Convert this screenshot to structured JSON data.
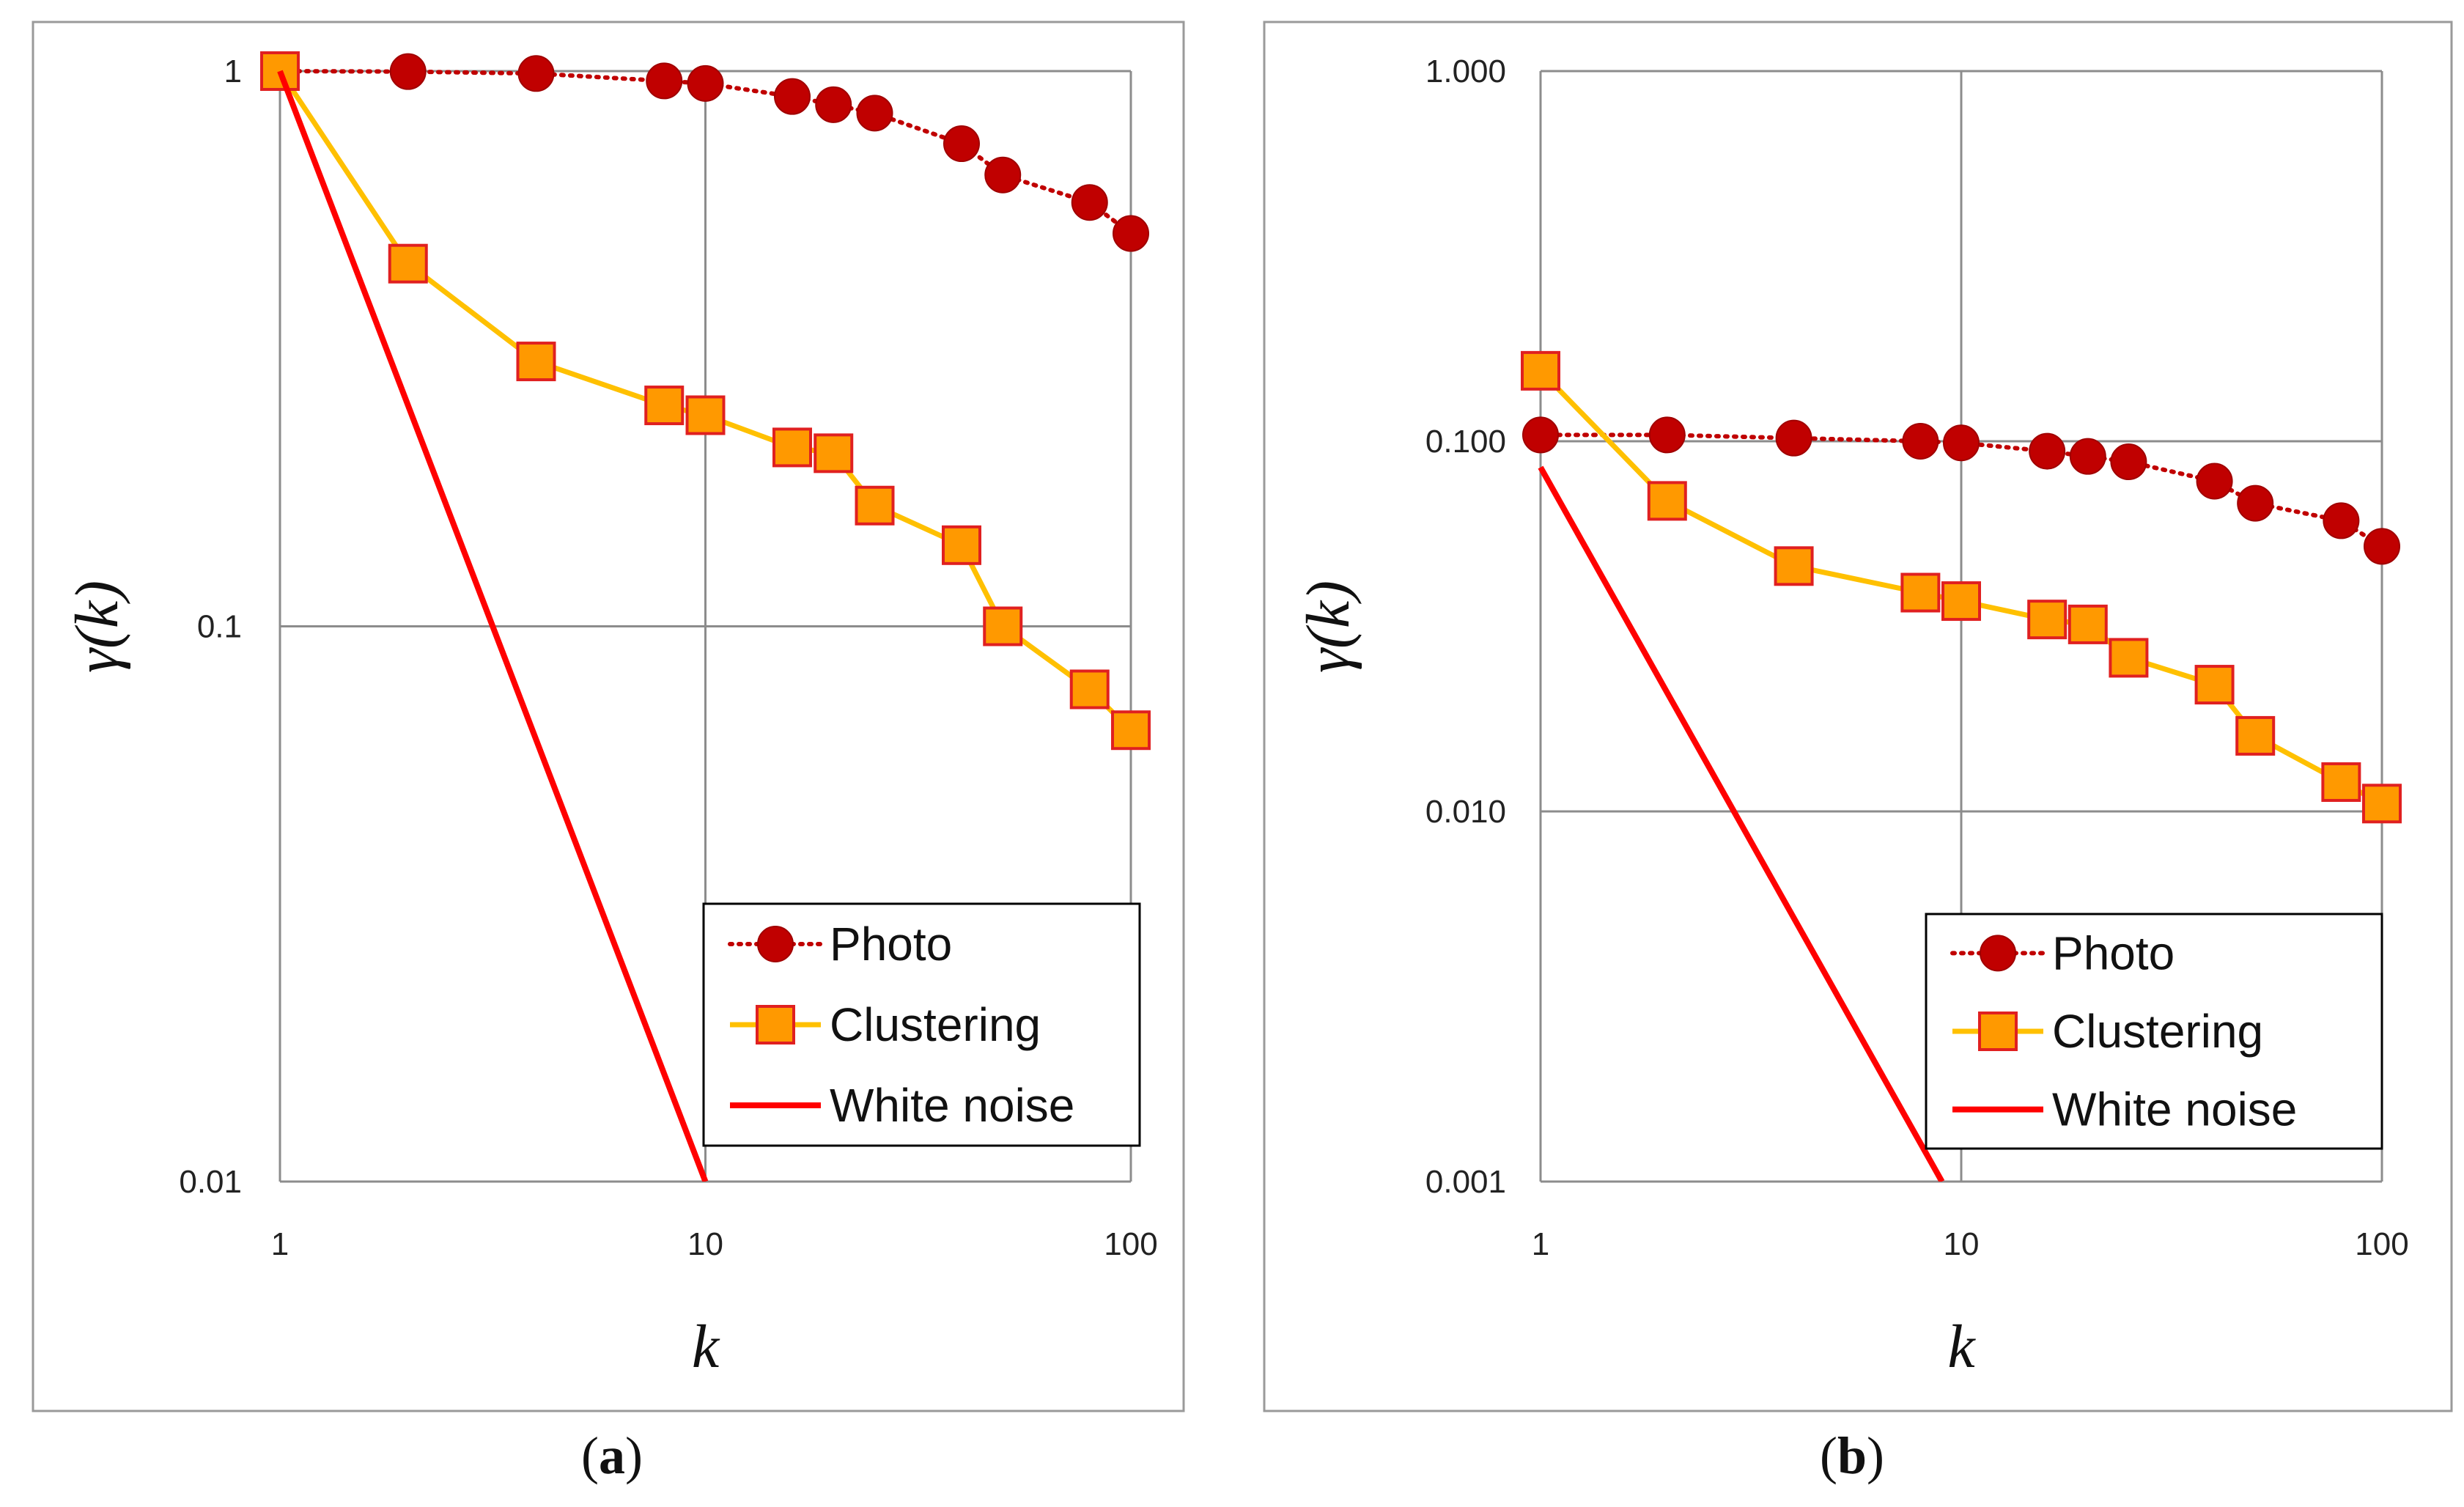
{
  "chart_data": [
    {
      "type": "line",
      "panel_label": "a",
      "caption_parts": [
        "(",
        "a",
        ")"
      ],
      "xlabel": "k",
      "ylabel": "γ(k)",
      "xscale": "log",
      "yscale": "log",
      "xlim": [
        1,
        100
      ],
      "ylim": [
        0.01,
        1
      ],
      "x_ticks": [
        1,
        10,
        100
      ],
      "x_tick_labels": [
        "1",
        "10",
        "100"
      ],
      "y_ticks": [
        0.01,
        0.1,
        1
      ],
      "y_tick_labels": [
        "0.01",
        "0.1",
        "1"
      ],
      "legend_position": "bottom-right",
      "series": [
        {
          "name": "Photo",
          "style": "dotted-circle",
          "color": "#c00000",
          "x": [
            1,
            2,
            4,
            8,
            10,
            16,
            20,
            25,
            40,
            50,
            80,
            100
          ],
          "y": [
            1.0,
            0.998,
            0.99,
            0.96,
            0.95,
            0.9,
            0.87,
            0.84,
            0.74,
            0.65,
            0.58,
            0.51
          ]
        },
        {
          "name": "Clustering",
          "style": "solid-square",
          "color": "#ffc000",
          "marker_fill": "#ff9900",
          "marker_edge": "#e02020",
          "x": [
            1,
            2,
            4,
            8,
            10,
            16,
            20,
            25,
            40,
            50,
            80,
            100
          ],
          "y": [
            1.0,
            0.45,
            0.3,
            0.25,
            0.24,
            0.21,
            0.205,
            0.165,
            0.14,
            0.1,
            0.077,
            0.065
          ]
        },
        {
          "name": "White noise",
          "style": "solid-line",
          "color": "#ff0000",
          "x": [
            1,
            10
          ],
          "y": [
            1.0,
            0.01
          ]
        }
      ]
    },
    {
      "type": "line",
      "panel_label": "b",
      "caption_parts": [
        "(",
        "b",
        ")"
      ],
      "xlabel": "k",
      "ylabel": "γ(k)",
      "xscale": "log",
      "yscale": "log",
      "xlim": [
        1,
        100
      ],
      "ylim": [
        0.001,
        1
      ],
      "x_ticks": [
        1,
        10,
        100
      ],
      "x_tick_labels": [
        "1",
        "10",
        "100"
      ],
      "y_ticks": [
        0.001,
        0.01,
        0.1,
        1
      ],
      "y_tick_labels": [
        "0.001",
        "0.010",
        "0.100",
        "1.000"
      ],
      "legend_position": "bottom-right",
      "series": [
        {
          "name": "Photo",
          "style": "dotted-circle",
          "color": "#c00000",
          "x": [
            1,
            2,
            4,
            8,
            10,
            16,
            20,
            25,
            40,
            50,
            80,
            100
          ],
          "y": [
            0.104,
            0.104,
            0.102,
            0.1,
            0.099,
            0.094,
            0.091,
            0.088,
            0.078,
            0.068,
            0.061,
            0.052
          ]
        },
        {
          "name": "Clustering",
          "style": "solid-square",
          "color": "#ffc000",
          "marker_fill": "#ff9900",
          "marker_edge": "#e02020",
          "x": [
            1,
            2,
            4,
            8,
            10,
            16,
            20,
            25,
            40,
            50,
            80,
            100
          ],
          "y": [
            0.155,
            0.069,
            0.046,
            0.039,
            0.037,
            0.033,
            0.032,
            0.026,
            0.022,
            0.016,
            0.012,
            0.0105
          ]
        },
        {
          "name": "White noise",
          "style": "solid-line",
          "color": "#ff0000",
          "x": [
            1,
            9
          ],
          "y": [
            0.085,
            0.001
          ]
        }
      ]
    }
  ]
}
